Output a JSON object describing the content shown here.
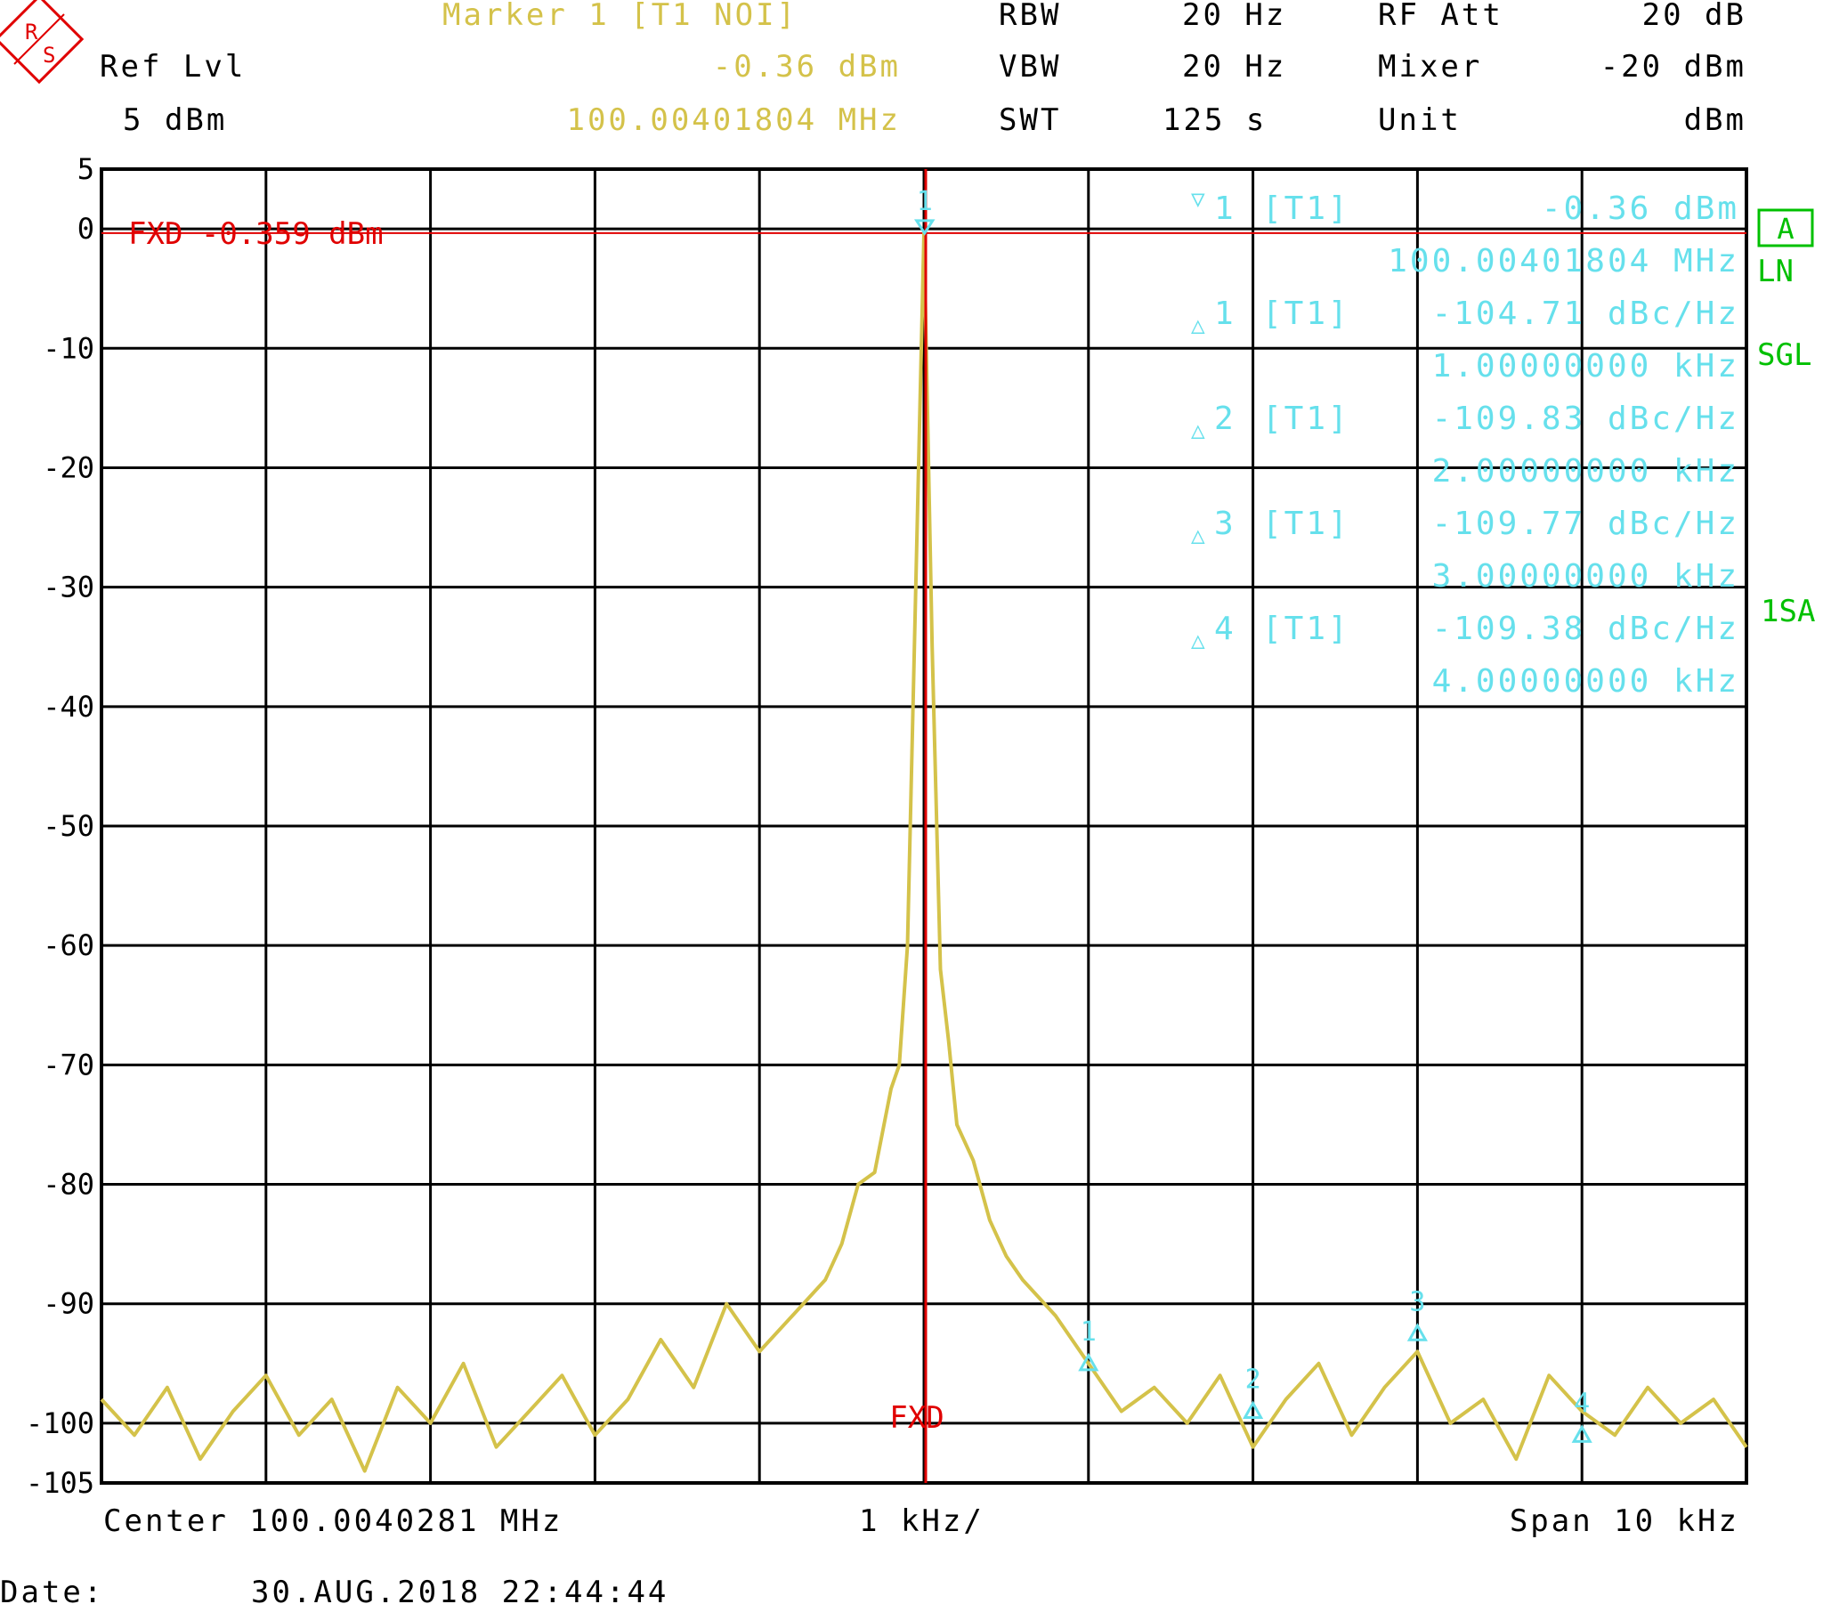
{
  "header": {
    "marker_title": "Marker 1 [T1 NOI]",
    "ref_lvl_label": "Ref Lvl",
    "ref_lvl_value": "5 dBm",
    "marker_level": "-0.36 dBm",
    "marker_freq": "100.00401804 MHz",
    "rbw_label": "RBW",
    "rbw_value": "20 Hz",
    "vbw_label": "VBW",
    "vbw_value": "20 Hz",
    "swt_label": "SWT",
    "swt_value": "125 s",
    "rfatt_label": "RF Att",
    "rfatt_value": "20 dB",
    "mixer_label": "Mixer",
    "mixer_value": "-20 dBm",
    "unit_label": "Unit",
    "unit_value": "dBm"
  },
  "logo": {
    "letters": "RS"
  },
  "side": {
    "trace_badge": "A",
    "ln": "LN",
    "sgl": "SGL",
    "sa": "1SA"
  },
  "markers": [
    {
      "id": "1",
      "sym": "▽",
      "trace": "[T1]",
      "value": "-0.36 dBm",
      "freq": "100.00401804 MHz"
    },
    {
      "id": "1",
      "sym": "△",
      "trace": "[T1]",
      "value": "-104.71 dBc/Hz",
      "freq": "1.00000000 kHz"
    },
    {
      "id": "2",
      "sym": "△",
      "trace": "[T1]",
      "value": "-109.83 dBc/Hz",
      "freq": "2.00000000 kHz"
    },
    {
      "id": "3",
      "sym": "△",
      "trace": "[T1]",
      "value": "-109.77 dBc/Hz",
      "freq": "3.00000000 kHz"
    },
    {
      "id": "4",
      "sym": "△",
      "trace": "[T1]",
      "value": "-109.38 dBc/Hz",
      "freq": "4.00000000 kHz"
    }
  ],
  "footer": {
    "center": "Center 100.0040281 MHz",
    "div": "1 kHz/",
    "span": "Span 10 kHz",
    "date_label": "Date:",
    "date_value": "30.AUG.2018  22:44:44"
  },
  "chart_data": {
    "type": "line",
    "xlabel": "",
    "ylabel": "",
    "x_unit": "kHz offset from center",
    "xlim": [
      -5,
      5
    ],
    "ylim": [
      -105,
      5
    ],
    "grid": true,
    "yticks": [
      5,
      0,
      -10,
      -20,
      -30,
      -40,
      -50,
      -60,
      -70,
      -80,
      -90,
      -100,
      -105
    ],
    "ytick_labels": [
      "5",
      "0",
      "-10",
      "-20",
      "-30",
      "-40",
      "-50",
      "-60",
      "-70",
      "-80",
      "-90",
      "-100",
      "-105"
    ],
    "reference_line": {
      "label": "FXD -0.359 dBm",
      "value": -0.359,
      "color": "#e00000"
    },
    "vertical_line": {
      "label": "FXD",
      "x": 0.0,
      "color": "#e00000"
    },
    "series": [
      {
        "color": "#d4c24a",
        "x": [
          -5.0,
          -4.8,
          -4.6,
          -4.4,
          -4.2,
          -4.0,
          -3.8,
          -3.6,
          -3.4,
          -3.2,
          -3.0,
          -2.8,
          -2.6,
          -2.4,
          -2.2,
          -2.0,
          -1.8,
          -1.6,
          -1.4,
          -1.2,
          -1.0,
          -0.8,
          -0.6,
          -0.5,
          -0.4,
          -0.3,
          -0.2,
          -0.15,
          -0.1,
          -0.05,
          0.0,
          0.05,
          0.1,
          0.15,
          0.2,
          0.3,
          0.4,
          0.5,
          0.6,
          0.8,
          1.0,
          1.2,
          1.4,
          1.6,
          1.8,
          2.0,
          2.2,
          2.4,
          2.6,
          2.8,
          3.0,
          3.2,
          3.4,
          3.6,
          3.8,
          4.0,
          4.2,
          4.4,
          4.6,
          4.8,
          5.0
        ],
        "y": [
          -98,
          -101,
          -97,
          -103,
          -99,
          -96,
          -101,
          -98,
          -104,
          -97,
          -100,
          -95,
          -102,
          -99,
          -96,
          -101,
          -98,
          -93,
          -97,
          -90,
          -94,
          -91,
          -88,
          -85,
          -80,
          -79,
          -72,
          -70,
          -60,
          -30,
          -0.36,
          -35,
          -62,
          -68,
          -75,
          -78,
          -83,
          -86,
          -88,
          -91,
          -95,
          -99,
          -97,
          -100,
          -96,
          -102,
          -98,
          -95,
          -101,
          -97,
          -94,
          -100,
          -98,
          -103,
          -96,
          -99,
          -101,
          -97,
          -100,
          -98,
          -102
        ]
      }
    ],
    "marker_points": [
      {
        "id": "1",
        "x": 0.004,
        "y": -0.36
      },
      {
        "id": "1",
        "x": 1.0,
        "y": -95
      },
      {
        "id": "2",
        "x": 2.0,
        "y": -99
      },
      {
        "id": "3",
        "x": 3.0,
        "y": -92.5
      },
      {
        "id": "4",
        "x": 4.0,
        "y": -101
      }
    ]
  }
}
